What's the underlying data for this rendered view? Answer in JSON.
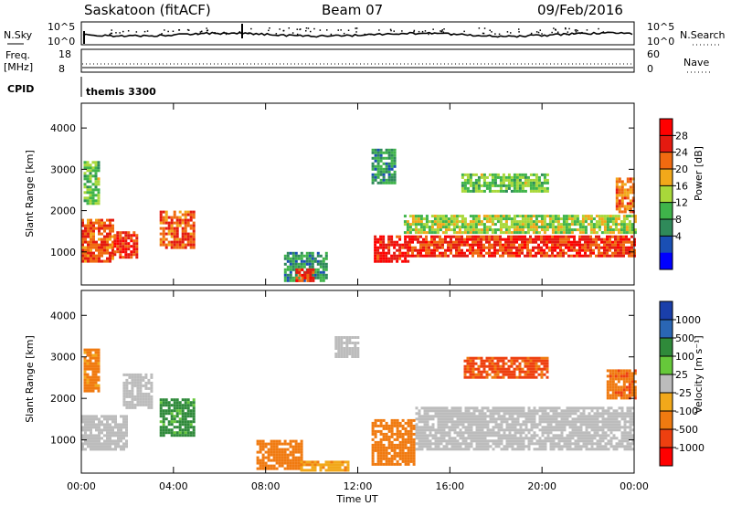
{
  "header": {
    "radar": "Saskatoon (fitACF)",
    "beam": "Beam 07",
    "date": "09/Feb/2016"
  },
  "top_panels": {
    "nsky_label": "N.Sky",
    "nsky_ticks": [
      "10^5",
      "10^0"
    ],
    "nsearch_label": "N.Search",
    "nsearch_ticks": [
      "10^5",
      "10^0"
    ],
    "freq_label": "Freq.",
    "freq_unit": "[MHz]",
    "freq_ticks": [
      "18",
      "8"
    ],
    "nave_label": "Nave",
    "nave_ticks": [
      "60",
      "0"
    ],
    "cpid_label": "CPID",
    "cpid_value": "themis 3300"
  },
  "colors": {
    "power": [
      "#0000ff",
      "#1a4fb4",
      "#2f8a5a",
      "#3fb44a",
      "#a8d83a",
      "#f2a81a",
      "#f06a10",
      "#e41a10",
      "#ff0000"
    ],
    "velocity": [
      "#ff0000",
      "#ee4010",
      "#f07a10",
      "#f2a81a",
      "#bcbcbc",
      "#66c83a",
      "#2f8a3a",
      "#2a66b4",
      "#1a3faa"
    ],
    "ground_scatter": "#bcbcbc"
  },
  "chart_data": [
    {
      "type": "heatmap",
      "panel": "power",
      "ylabel": "Slant Range [km]",
      "yticks": [
        "1000",
        "2000",
        "3000",
        "4000"
      ],
      "ylim": [
        200,
        4600
      ],
      "xlim": [
        0,
        24
      ],
      "xticks": [
        "00:00",
        "04:00",
        "08:00",
        "12:00",
        "16:00",
        "20:00",
        "00:00"
      ],
      "colorbar": {
        "label": "Power [dB]",
        "ticks": [
          "4",
          "8",
          "12",
          "16",
          "20",
          "24",
          "28"
        ],
        "range": [
          0,
          32
        ]
      },
      "regions": [
        {
          "t": [
            0.0,
            1.4
          ],
          "r": [
            800,
            1800
          ],
          "v": 24
        },
        {
          "t": [
            0.1,
            0.8
          ],
          "r": [
            2200,
            3200
          ],
          "v": 14
        },
        {
          "t": [
            1.4,
            2.4
          ],
          "r": [
            900,
            1500
          ],
          "v": 26
        },
        {
          "t": [
            3.4,
            4.9
          ],
          "r": [
            1100,
            2000
          ],
          "v": 24
        },
        {
          "t": [
            8.8,
            10.6
          ],
          "r": [
            300,
            1000
          ],
          "v": 10
        },
        {
          "t": [
            9.3,
            10.1
          ],
          "r": [
            300,
            600
          ],
          "v": 26
        },
        {
          "t": [
            12.7,
            14.2
          ],
          "r": [
            800,
            1400
          ],
          "v": 28
        },
        {
          "t": [
            12.6,
            13.6
          ],
          "r": [
            2700,
            3500
          ],
          "v": 10
        },
        {
          "t": [
            14.2,
            24.0
          ],
          "r": [
            900,
            1400
          ],
          "v": 26
        },
        {
          "t": [
            14.0,
            24.0
          ],
          "r": [
            1500,
            1900
          ],
          "v": 16
        },
        {
          "t": [
            16.5,
            20.3
          ],
          "r": [
            2500,
            2900
          ],
          "v": 14
        },
        {
          "t": [
            23.2,
            24.0
          ],
          "r": [
            2000,
            2800
          ],
          "v": 22
        }
      ]
    },
    {
      "type": "heatmap",
      "panel": "velocity",
      "ylabel": "Slant Range [km]",
      "xlabel": "Time UT",
      "yticks": [
        "1000",
        "2000",
        "3000",
        "4000"
      ],
      "ylim": [
        200,
        4600
      ],
      "xlim": [
        0,
        24
      ],
      "xticks": [
        "00:00",
        "04:00",
        "08:00",
        "12:00",
        "16:00",
        "20:00",
        "00:00"
      ],
      "colorbar": {
        "label": "Velocity [m s⁻¹]",
        "ticks": [
          "1000",
          "500",
          "100",
          "25",
          "-25",
          "-100",
          "-500",
          "-1000"
        ]
      },
      "regions": [
        {
          "t": [
            0.0,
            2.0
          ],
          "r": [
            800,
            1600
          ],
          "v": 0
        },
        {
          "t": [
            1.8,
            3.0
          ],
          "r": [
            1800,
            2600
          ],
          "v": 0
        },
        {
          "t": [
            3.4,
            4.9
          ],
          "r": [
            1100,
            2000
          ],
          "v": 150
        },
        {
          "t": [
            0.1,
            0.8
          ],
          "r": [
            2200,
            3200
          ],
          "v": -150
        },
        {
          "t": [
            7.6,
            9.6
          ],
          "r": [
            300,
            1000
          ],
          "v": -200
        },
        {
          "t": [
            9.5,
            11.6
          ],
          "r": [
            300,
            500
          ],
          "v": -80
        },
        {
          "t": [
            11.0,
            12.0
          ],
          "r": [
            3000,
            3500
          ],
          "v": 0
        },
        {
          "t": [
            12.6,
            14.4
          ],
          "r": [
            400,
            1500
          ],
          "v": -250
        },
        {
          "t": [
            14.5,
            24.0
          ],
          "r": [
            800,
            1800
          ],
          "v": 0
        },
        {
          "t": [
            16.6,
            20.2
          ],
          "r": [
            2500,
            3000
          ],
          "v": -600
        },
        {
          "t": [
            22.8,
            24.0
          ],
          "r": [
            2000,
            2700
          ],
          "v": -400
        }
      ]
    }
  ]
}
